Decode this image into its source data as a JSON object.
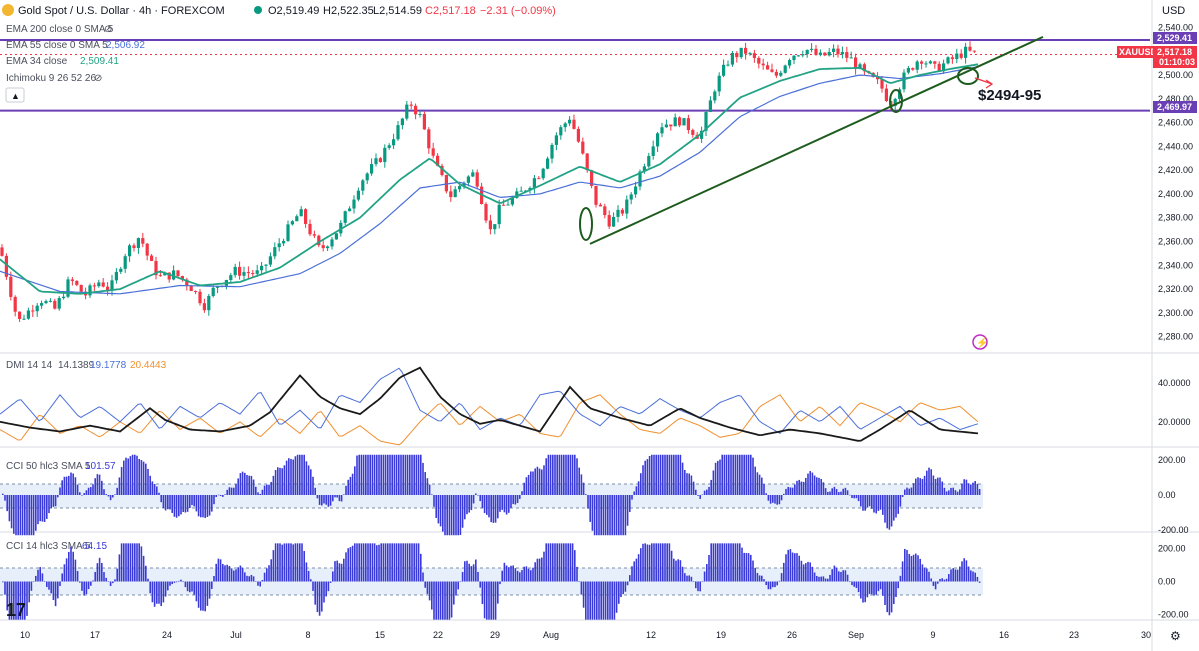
{
  "header": {
    "symbol": "Gold Spot / U.S. Dollar · 4h · FOREXCOM",
    "open": "O2,519.49",
    "high": "H2,522.35",
    "low": "L2,514.59",
    "close": "C2,517.18",
    "change": "−2.31 (−0.09%)",
    "currency": "USD"
  },
  "indicators": {
    "ema200": "EMA 200 close 0 SMA 5",
    "ema55": "EMA 55 close 0 SMA 5",
    "ema55_val": "2,506.92",
    "ema34": "EMA 34 close",
    "ema34_val": "2,509.41",
    "ichimoku": "Ichimoku 9 26 52 26",
    "dmi": "DMI 14 14",
    "dmi_adx": "14.1389",
    "dmi_plus": "19.1778",
    "dmi_minus": "20.4443",
    "cci50": "CCI 50 hlc3 SMA 5",
    "cci50_val": "101.57",
    "cci14": "CCI 14 hlc3 SMA 5",
    "cci14_val": "64.15"
  },
  "annotations": {
    "target": "$2494-95"
  },
  "price_tags": {
    "resistance": "2,529.41",
    "symbol_tag": "XAUUSD",
    "last": "2,517.18",
    "countdown": "01:10:03",
    "support": "2,469.97"
  },
  "colors": {
    "up": "#089981",
    "down": "#f23645",
    "ema55": "#4a6fd8",
    "ema34": "#22a385",
    "level": "#6a3fb5",
    "trendline": "#1e5c1e",
    "di_plus": "#4a6fd8",
    "di_minus": "#f0902e",
    "adx": "#1a1a1a",
    "cci": "#3a3ad8"
  },
  "chart_data": {
    "type": "candlestick",
    "symbol": "XAUUSD",
    "timeframe": "4h",
    "price_axis_ticks": [
      "2,540.00",
      "2,520.00",
      "2,500.00",
      "2,480.00",
      "2,460.00",
      "2,440.00",
      "2,420.00",
      "2,400.00",
      "2,380.00",
      "2,360.00",
      "2,340.00",
      "2,320.00",
      "2,300.00",
      "2,280.00"
    ],
    "price_ylim": [
      2273,
      2542
    ],
    "time_axis_ticks": [
      "10",
      "17",
      "24",
      "Jul",
      "8",
      "15",
      "22",
      "29",
      "Aug",
      "12",
      "19",
      "26",
      "Sep",
      "9",
      "16",
      "23",
      "30"
    ],
    "price_anchors": [
      [
        0,
        2355
      ],
      [
        18,
        2292
      ],
      [
        40,
        2312
      ],
      [
        55,
        2303
      ],
      [
        70,
        2328
      ],
      [
        85,
        2315
      ],
      [
        100,
        2327
      ],
      [
        110,
        2319
      ],
      [
        125,
        2350
      ],
      [
        140,
        2365
      ],
      [
        150,
        2342
      ],
      [
        160,
        2330
      ],
      [
        175,
        2333
      ],
      [
        190,
        2323
      ],
      [
        205,
        2306
      ],
      [
        215,
        2322
      ],
      [
        235,
        2335
      ],
      [
        260,
        2333
      ],
      [
        280,
        2360
      ],
      [
        300,
        2385
      ],
      [
        320,
        2352
      ],
      [
        340,
        2372
      ],
      [
        360,
        2410
      ],
      [
        380,
        2430
      ],
      [
        400,
        2458
      ],
      [
        410,
        2477
      ],
      [
        420,
        2465
      ],
      [
        435,
        2425
      ],
      [
        450,
        2398
      ],
      [
        465,
        2412
      ],
      [
        475,
        2418
      ],
      [
        490,
        2368
      ],
      [
        500,
        2388
      ],
      [
        520,
        2400
      ],
      [
        540,
        2418
      ],
      [
        555,
        2448
      ],
      [
        570,
        2465
      ],
      [
        580,
        2440
      ],
      [
        595,
        2394
      ],
      [
        610,
        2376
      ],
      [
        625,
        2388
      ],
      [
        640,
        2418
      ],
      [
        660,
        2458
      ],
      [
        680,
        2462
      ],
      [
        700,
        2448
      ],
      [
        715,
        2490
      ],
      [
        730,
        2515
      ],
      [
        745,
        2520
      ],
      [
        760,
        2508
      ],
      [
        775,
        2498
      ],
      [
        790,
        2516
      ],
      [
        805,
        2522
      ],
      [
        820,
        2515
      ],
      [
        835,
        2520
      ],
      [
        850,
        2514
      ],
      [
        865,
        2500
      ],
      [
        880,
        2492
      ],
      [
        890,
        2476
      ],
      [
        905,
        2500
      ],
      [
        920,
        2515
      ],
      [
        935,
        2505
      ],
      [
        950,
        2512
      ],
      [
        965,
        2520
      ],
      [
        978,
        2517
      ]
    ],
    "ema34": [
      [
        0,
        2345
      ],
      [
        40,
        2318
      ],
      [
        80,
        2316
      ],
      [
        120,
        2320
      ],
      [
        160,
        2335
      ],
      [
        200,
        2323
      ],
      [
        240,
        2326
      ],
      [
        280,
        2338
      ],
      [
        320,
        2360
      ],
      [
        360,
        2380
      ],
      [
        400,
        2412
      ],
      [
        430,
        2430
      ],
      [
        460,
        2408
      ],
      [
        500,
        2392
      ],
      [
        540,
        2407
      ],
      [
        580,
        2423
      ],
      [
        620,
        2410
      ],
      [
        660,
        2425
      ],
      [
        700,
        2450
      ],
      [
        740,
        2481
      ],
      [
        780,
        2495
      ],
      [
        820,
        2505
      ],
      [
        860,
        2506
      ],
      [
        890,
        2493
      ],
      [
        920,
        2500
      ],
      [
        950,
        2505
      ],
      [
        978,
        2509
      ]
    ],
    "ema55": [
      [
        0,
        2335
      ],
      [
        60,
        2318
      ],
      [
        120,
        2316
      ],
      [
        180,
        2323
      ],
      [
        240,
        2322
      ],
      [
        300,
        2333
      ],
      [
        340,
        2350
      ],
      [
        380,
        2375
      ],
      [
        420,
        2405
      ],
      [
        460,
        2410
      ],
      [
        500,
        2397
      ],
      [
        540,
        2400
      ],
      [
        580,
        2410
      ],
      [
        620,
        2405
      ],
      [
        660,
        2415
      ],
      [
        700,
        2435
      ],
      [
        740,
        2465
      ],
      [
        780,
        2482
      ],
      [
        820,
        2493
      ],
      [
        860,
        2500
      ],
      [
        900,
        2497
      ],
      [
        940,
        2501
      ],
      [
        978,
        2507
      ]
    ],
    "resistance_level": 2529.41,
    "support_level": 2469.97,
    "trendline": [
      [
        590,
        2358
      ],
      [
        1043,
        2532
      ]
    ],
    "dmi": {
      "ylim": [
        8,
        52
      ],
      "ticks": [
        "40.0000",
        "20.0000"
      ],
      "adx": [
        [
          0,
          20
        ],
        [
          30,
          17
        ],
        [
          60,
          15
        ],
        [
          90,
          18
        ],
        [
          120,
          15
        ],
        [
          150,
          27
        ],
        [
          165,
          21
        ],
        [
          190,
          16
        ],
        [
          220,
          15
        ],
        [
          250,
          18
        ],
        [
          270,
          25
        ],
        [
          300,
          44
        ],
        [
          320,
          33
        ],
        [
          340,
          27
        ],
        [
          360,
          24
        ],
        [
          380,
          32
        ],
        [
          400,
          43
        ],
        [
          420,
          48
        ],
        [
          440,
          33
        ],
        [
          460,
          24
        ],
        [
          480,
          19
        ],
        [
          500,
          21
        ],
        [
          520,
          18
        ],
        [
          540,
          15
        ],
        [
          570,
          38
        ],
        [
          590,
          27
        ],
        [
          620,
          22
        ],
        [
          650,
          18
        ],
        [
          680,
          27
        ],
        [
          700,
          22
        ],
        [
          730,
          17
        ],
        [
          760,
          13
        ],
        [
          790,
          16
        ],
        [
          820,
          14
        ],
        [
          860,
          10
        ],
        [
          880,
          16
        ],
        [
          910,
          26
        ],
        [
          940,
          16
        ],
        [
          978,
          14
        ]
      ],
      "di_plus": [
        [
          0,
          24
        ],
        [
          20,
          32
        ],
        [
          40,
          20
        ],
        [
          60,
          34
        ],
        [
          80,
          22
        ],
        [
          100,
          28
        ],
        [
          120,
          20
        ],
        [
          140,
          30
        ],
        [
          160,
          16
        ],
        [
          180,
          28
        ],
        [
          200,
          22
        ],
        [
          220,
          30
        ],
        [
          240,
          24
        ],
        [
          260,
          36
        ],
        [
          280,
          18
        ],
        [
          300,
          26
        ],
        [
          320,
          16
        ],
        [
          340,
          34
        ],
        [
          360,
          30
        ],
        [
          380,
          42
        ],
        [
          400,
          48
        ],
        [
          420,
          26
        ],
        [
          440,
          20
        ],
        [
          460,
          30
        ],
        [
          480,
          16
        ],
        [
          500,
          22
        ],
        [
          520,
          18
        ],
        [
          540,
          34
        ],
        [
          560,
          36
        ],
        [
          580,
          24
        ],
        [
          600,
          18
        ],
        [
          620,
          28
        ],
        [
          640,
          24
        ],
        [
          660,
          32
        ],
        [
          680,
          26
        ],
        [
          700,
          22
        ],
        [
          720,
          30
        ],
        [
          740,
          34
        ],
        [
          760,
          20
        ],
        [
          780,
          14
        ],
        [
          800,
          26
        ],
        [
          820,
          20
        ],
        [
          840,
          28
        ],
        [
          860,
          16
        ],
        [
          880,
          22
        ],
        [
          900,
          28
        ],
        [
          920,
          18
        ],
        [
          940,
          22
        ],
        [
          960,
          16
        ],
        [
          978,
          19
        ]
      ],
      "di_minus": [
        [
          0,
          16
        ],
        [
          20,
          10
        ],
        [
          40,
          24
        ],
        [
          60,
          14
        ],
        [
          80,
          18
        ],
        [
          100,
          12
        ],
        [
          120,
          20
        ],
        [
          140,
          14
        ],
        [
          160,
          26
        ],
        [
          180,
          16
        ],
        [
          200,
          22
        ],
        [
          220,
          14
        ],
        [
          240,
          20
        ],
        [
          260,
          12
        ],
        [
          280,
          22
        ],
        [
          300,
          14
        ],
        [
          320,
          26
        ],
        [
          340,
          12
        ],
        [
          360,
          18
        ],
        [
          380,
          10
        ],
        [
          400,
          8
        ],
        [
          420,
          20
        ],
        [
          440,
          30
        ],
        [
          460,
          18
        ],
        [
          480,
          28
        ],
        [
          500,
          20
        ],
        [
          520,
          24
        ],
        [
          540,
          14
        ],
        [
          560,
          12
        ],
        [
          580,
          30
        ],
        [
          600,
          34
        ],
        [
          620,
          24
        ],
        [
          640,
          16
        ],
        [
          660,
          14
        ],
        [
          680,
          22
        ],
        [
          700,
          18
        ],
        [
          720,
          12
        ],
        [
          740,
          14
        ],
        [
          760,
          28
        ],
        [
          780,
          34
        ],
        [
          800,
          20
        ],
        [
          820,
          28
        ],
        [
          840,
          18
        ],
        [
          860,
          30
        ],
        [
          880,
          26
        ],
        [
          900,
          20
        ],
        [
          920,
          30
        ],
        [
          940,
          26
        ],
        [
          960,
          28
        ],
        [
          978,
          20
        ]
      ]
    },
    "cci50": {
      "ylim": [
        -200,
        200
      ],
      "ticks": [
        "200.00",
        "0.00",
        "-200.00"
      ],
      "band": [
        -100,
        100
      ]
    },
    "cci14": {
      "ylim": [
        -220,
        220
      ],
      "ticks": [
        "200.00",
        "0.00",
        "-200.00"
      ],
      "band": [
        -100,
        100
      ]
    }
  }
}
